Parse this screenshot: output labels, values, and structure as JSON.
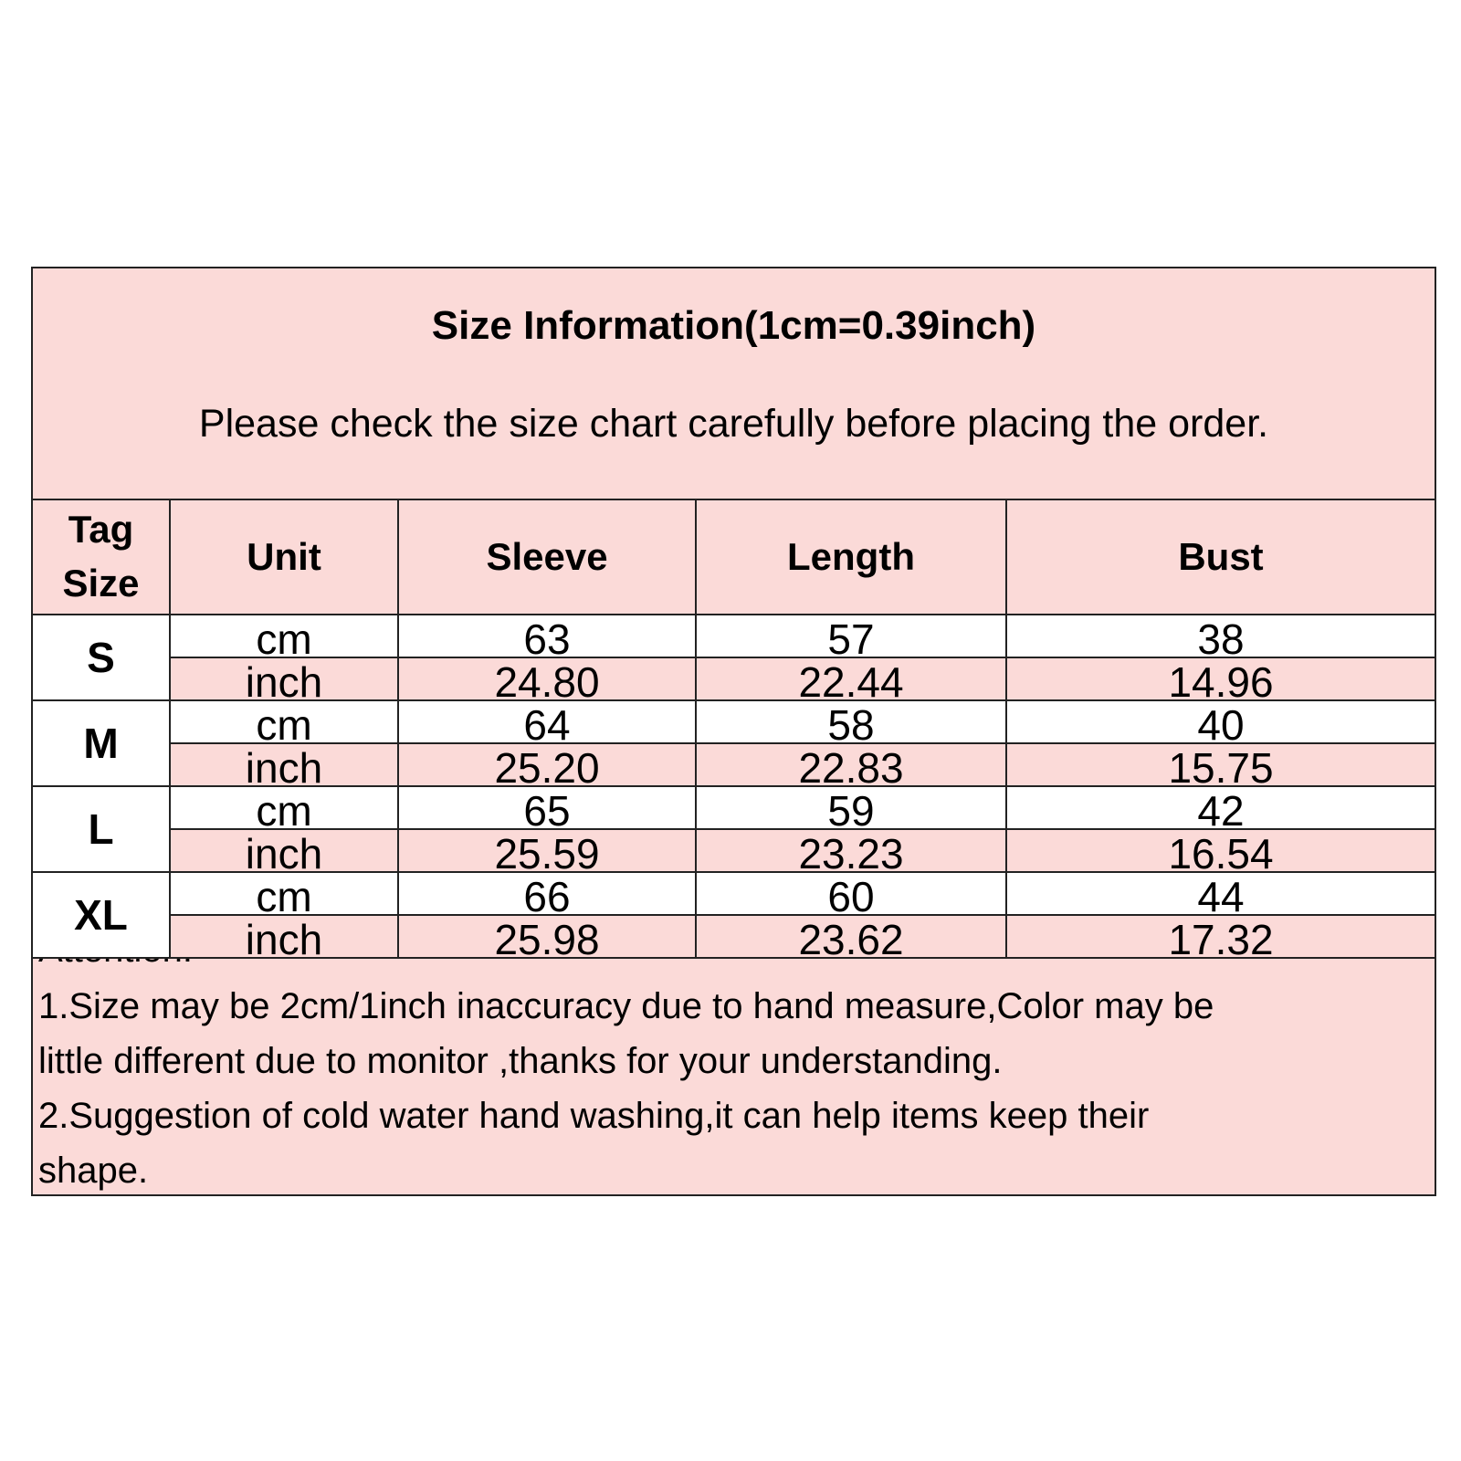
{
  "title": "Size Information(1cm=0.39inch)",
  "subtitle": "Please check the size chart carefully before placing the order.",
  "columns": {
    "tag_line1": "Tag",
    "tag_line2": "Size",
    "unit": "Unit",
    "sleeve": "Sleeve",
    "length": "Length",
    "bust": "Bust"
  },
  "colors": {
    "pink": "#fbdad8",
    "border": "#222222"
  },
  "sizes": [
    {
      "tag": "S",
      "cm": {
        "unit": "cm",
        "sleeve": "63",
        "length": "57",
        "bust": "38"
      },
      "inch": {
        "unit": "inch",
        "sleeve": "24.80",
        "length": "22.44",
        "bust": "14.96"
      }
    },
    {
      "tag": "M",
      "cm": {
        "unit": "cm",
        "sleeve": "64",
        "length": "58",
        "bust": "40"
      },
      "inch": {
        "unit": "inch",
        "sleeve": "25.20",
        "length": "22.83",
        "bust": "15.75"
      }
    },
    {
      "tag": "L",
      "cm": {
        "unit": "cm",
        "sleeve": "65",
        "length": "59",
        "bust": "42"
      },
      "inch": {
        "unit": "inch",
        "sleeve": "25.59",
        "length": "23.23",
        "bust": "16.54"
      }
    },
    {
      "tag": "XL",
      "cm": {
        "unit": "cm",
        "sleeve": "66",
        "length": "60",
        "bust": "44"
      },
      "inch": {
        "unit": "inch",
        "sleeve": "25.98",
        "length": "23.62",
        "bust": "17.32"
      }
    }
  ],
  "notes": {
    "attention": "Attention:",
    "lines": [
      "1.Size may be 2cm/1inch inaccuracy due to hand measure,Color may be",
      "little different due to monitor ,thanks for your understanding.",
      "2.Suggestion of cold water hand washing,it can help items keep their",
      "shape."
    ]
  }
}
